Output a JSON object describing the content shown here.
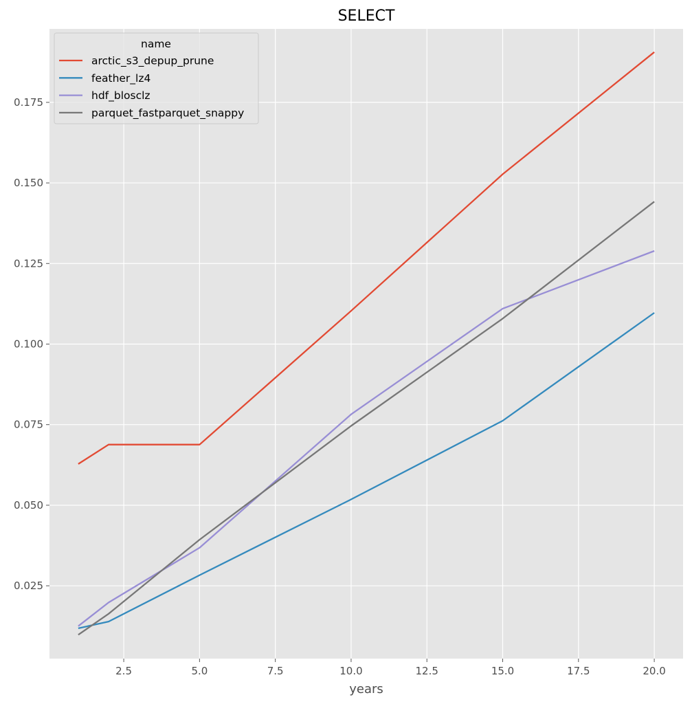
{
  "chart_data": {
    "type": "line",
    "title": "SELECT",
    "xlabel": "years",
    "ylabel": "",
    "xlim": [
      0.05,
      20.95
    ],
    "ylim": [
      0.0024,
      0.1978
    ],
    "xticks": [
      2.5,
      5.0,
      7.5,
      10.0,
      12.5,
      15.0,
      17.5,
      20.0
    ],
    "xtick_labels": [
      "2.5",
      "5.0",
      "7.5",
      "10.0",
      "12.5",
      "15.0",
      "17.5",
      "20.0"
    ],
    "yticks": [
      0.025,
      0.05,
      0.075,
      0.1,
      0.125,
      0.15,
      0.175
    ],
    "ytick_labels": [
      "0.025",
      "0.050",
      "0.075",
      "0.100",
      "0.125",
      "0.150",
      "0.175"
    ],
    "grid": true,
    "legend_title": "name",
    "legend_position": "top-left",
    "x": [
      1,
      2,
      5,
      10,
      15,
      20
    ],
    "series": [
      {
        "name": "arctic_s3_depup_prune",
        "color": "#e24a33",
        "values": [
          0.0628,
          0.0688,
          0.0688,
          0.1103,
          0.1527,
          0.1906
        ]
      },
      {
        "name": "feather_lz4",
        "color": "#348abd",
        "values": [
          0.0118,
          0.0139,
          0.0283,
          0.0518,
          0.0762,
          0.1097
        ]
      },
      {
        "name": "hdf_blosclz",
        "color": "#988ed5",
        "values": [
          0.0125,
          0.0198,
          0.0368,
          0.0782,
          0.111,
          0.1289
        ]
      },
      {
        "name": "parquet_fastparquet_snappy",
        "color": "#777777",
        "values": [
          0.0098,
          0.0163,
          0.0393,
          0.0746,
          0.1079,
          0.1442
        ]
      }
    ]
  }
}
